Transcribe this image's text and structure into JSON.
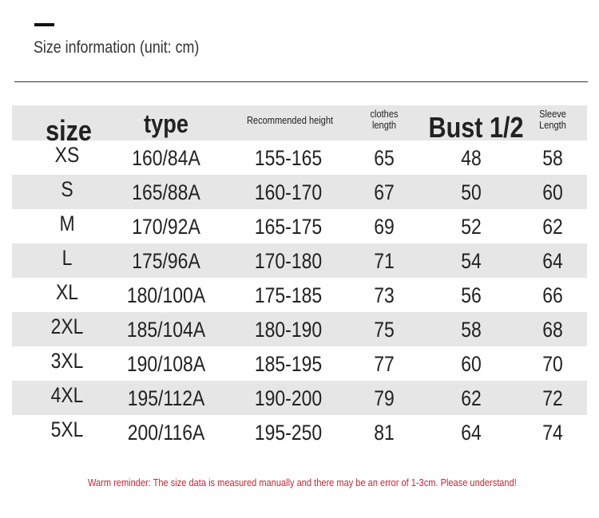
{
  "title": "Size information (unit: cm)",
  "headers": [
    "size",
    "type",
    "Recommended height",
    "clothes length",
    "Bust 1/2",
    "Sleeve Length"
  ],
  "header_lines": {
    "clothes": [
      "clothes",
      "length"
    ],
    "sleeve": [
      "Sleeve",
      "Length"
    ]
  },
  "rows": [
    [
      "XS",
      "160/84A",
      "155-165",
      "65",
      "48",
      "58"
    ],
    [
      "S",
      "165/88A",
      "160-170",
      "67",
      "50",
      "60"
    ],
    [
      "M",
      "170/92A",
      "165-175",
      "69",
      "52",
      "62"
    ],
    [
      "L",
      "175/96A",
      "170-180",
      "71",
      "54",
      "64"
    ],
    [
      "XL",
      "180/100A",
      "175-185",
      "73",
      "56",
      "66"
    ],
    [
      "2XL",
      "185/104A",
      "180-190",
      "75",
      "58",
      "68"
    ],
    [
      "3XL",
      "190/108A",
      "185-195",
      "77",
      "60",
      "70"
    ],
    [
      "4XL",
      "195/112A",
      "190-200",
      "79",
      "62",
      "72"
    ],
    [
      "5XL",
      "200/116A",
      "195-250",
      "81",
      "64",
      "74"
    ]
  ],
  "note": "Warm reminder: The size data is measured manually and there may be an error of 1-3cm. Please understand!",
  "colors": {
    "stripe": "#e6e6e6",
    "note": "#c0283a"
  }
}
